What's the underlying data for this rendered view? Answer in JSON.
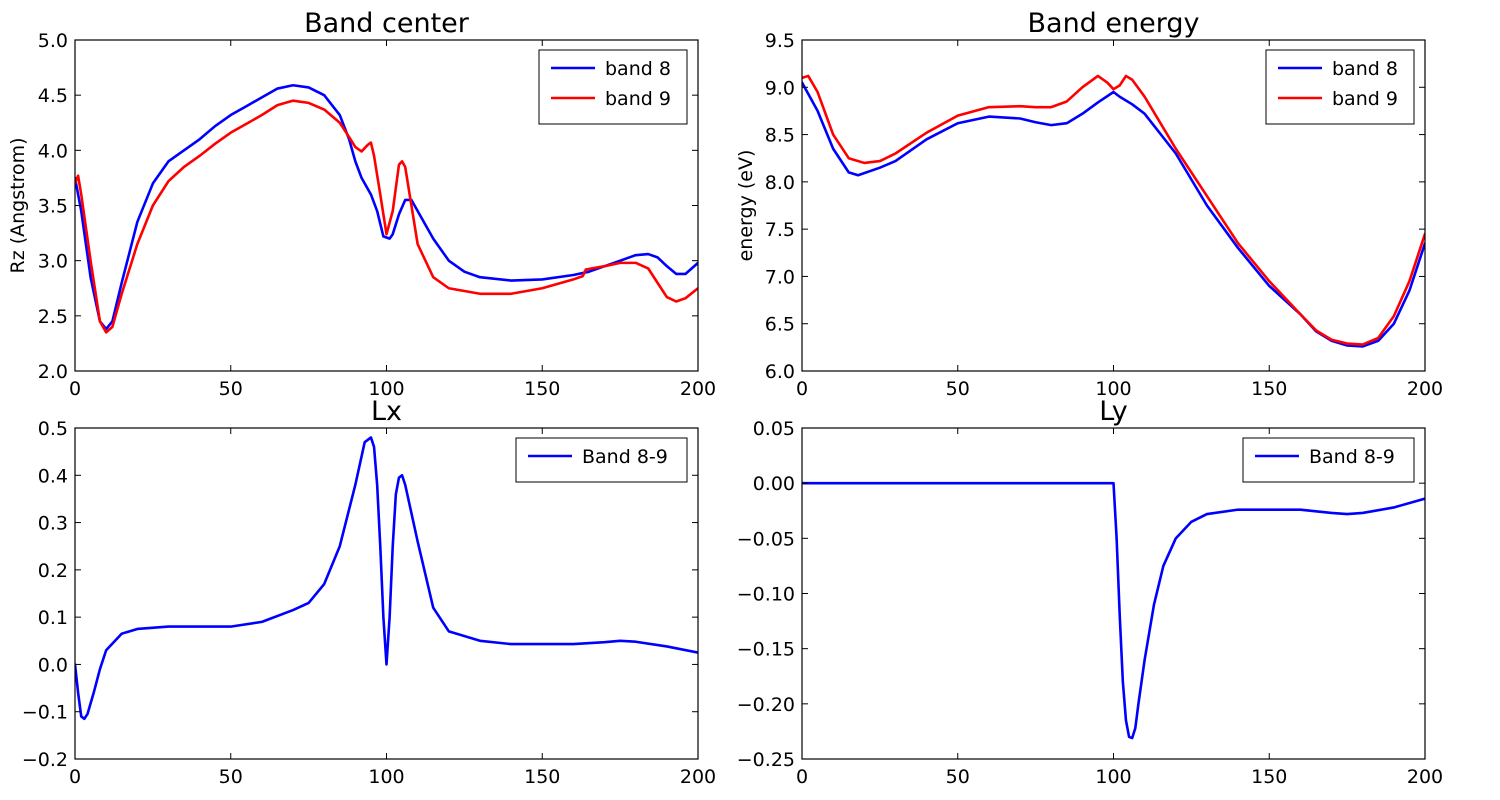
{
  "chart_data": [
    {
      "type": "line",
      "title": "Band center",
      "xlabel": "",
      "ylabel": "Rz (Angstrom)",
      "xlim": [
        0,
        200
      ],
      "ylim": [
        2.0,
        5.0
      ],
      "xticks": [
        0,
        50,
        100,
        150,
        200
      ],
      "xtick_labels": [
        "0",
        "50",
        "100",
        "150",
        "200"
      ],
      "yticks": [
        2.0,
        2.5,
        3.0,
        3.5,
        4.0,
        4.5,
        5.0
      ],
      "ytick_labels": [
        "2.0",
        "2.5",
        "3.0",
        "3.5",
        "4.0",
        "4.5",
        "5.0"
      ],
      "grid": false,
      "legend": "top-right",
      "series": [
        {
          "name": "band 8",
          "color": "#0000ff",
          "points": [
            [
              0,
              3.75
            ],
            [
              2,
              3.45
            ],
            [
              5,
              2.85
            ],
            [
              8,
              2.45
            ],
            [
              10,
              2.38
            ],
            [
              12,
              2.45
            ],
            [
              15,
              2.8
            ],
            [
              20,
              3.35
            ],
            [
              25,
              3.7
            ],
            [
              30,
              3.9
            ],
            [
              35,
              4.0
            ],
            [
              40,
              4.1
            ],
            [
              45,
              4.22
            ],
            [
              50,
              4.32
            ],
            [
              55,
              4.4
            ],
            [
              60,
              4.48
            ],
            [
              65,
              4.56
            ],
            [
              70,
              4.59
            ],
            [
              75,
              4.57
            ],
            [
              80,
              4.5
            ],
            [
              85,
              4.32
            ],
            [
              88,
              4.1
            ],
            [
              90,
              3.9
            ],
            [
              92,
              3.75
            ],
            [
              95,
              3.6
            ],
            [
              97,
              3.45
            ],
            [
              99,
              3.22
            ],
            [
              101,
              3.2
            ],
            [
              102,
              3.24
            ],
            [
              104,
              3.42
            ],
            [
              106,
              3.55
            ],
            [
              108,
              3.55
            ],
            [
              110,
              3.45
            ],
            [
              115,
              3.2
            ],
            [
              120,
              3.0
            ],
            [
              125,
              2.9
            ],
            [
              130,
              2.85
            ],
            [
              140,
              2.82
            ],
            [
              150,
              2.83
            ],
            [
              160,
              2.87
            ],
            [
              165,
              2.9
            ],
            [
              170,
              2.95
            ],
            [
              175,
              3.0
            ],
            [
              180,
              3.05
            ],
            [
              184,
              3.06
            ],
            [
              187,
              3.03
            ],
            [
              190,
              2.95
            ],
            [
              193,
              2.88
            ],
            [
              196,
              2.88
            ],
            [
              200,
              2.98
            ]
          ]
        },
        {
          "name": "band 9",
          "color": "#ff0000",
          "points": [
            [
              0,
              3.7
            ],
            [
              1,
              3.77
            ],
            [
              2,
              3.6
            ],
            [
              5,
              3.0
            ],
            [
              8,
              2.45
            ],
            [
              10,
              2.35
            ],
            [
              12,
              2.4
            ],
            [
              15,
              2.7
            ],
            [
              20,
              3.15
            ],
            [
              25,
              3.5
            ],
            [
              30,
              3.72
            ],
            [
              35,
              3.85
            ],
            [
              40,
              3.95
            ],
            [
              45,
              4.06
            ],
            [
              50,
              4.16
            ],
            [
              55,
              4.24
            ],
            [
              60,
              4.32
            ],
            [
              65,
              4.41
            ],
            [
              70,
              4.45
            ],
            [
              75,
              4.43
            ],
            [
              80,
              4.37
            ],
            [
              85,
              4.25
            ],
            [
              88,
              4.12
            ],
            [
              90,
              4.03
            ],
            [
              92,
              3.99
            ],
            [
              94,
              4.05
            ],
            [
              95,
              4.07
            ],
            [
              96,
              3.95
            ],
            [
              98,
              3.6
            ],
            [
              100,
              3.24
            ],
            [
              102,
              3.45
            ],
            [
              104,
              3.87
            ],
            [
              105,
              3.9
            ],
            [
              106,
              3.85
            ],
            [
              108,
              3.5
            ],
            [
              110,
              3.15
            ],
            [
              115,
              2.85
            ],
            [
              120,
              2.75
            ],
            [
              130,
              2.7
            ],
            [
              140,
              2.7
            ],
            [
              150,
              2.75
            ],
            [
              160,
              2.83
            ],
            [
              163,
              2.86
            ],
            [
              164,
              2.92
            ],
            [
              170,
              2.95
            ],
            [
              175,
              2.98
            ],
            [
              180,
              2.98
            ],
            [
              184,
              2.93
            ],
            [
              187,
              2.8
            ],
            [
              190,
              2.67
            ],
            [
              193,
              2.63
            ],
            [
              196,
              2.66
            ],
            [
              200,
              2.75
            ]
          ]
        }
      ]
    },
    {
      "type": "line",
      "title": "Band energy",
      "xlabel": "",
      "ylabel": "energy (eV)",
      "xlim": [
        0,
        200
      ],
      "ylim": [
        6.0,
        9.5
      ],
      "xticks": [
        0,
        50,
        100,
        150,
        200
      ],
      "xtick_labels": [
        "0",
        "50",
        "100",
        "150",
        "200"
      ],
      "yticks": [
        6.0,
        6.5,
        7.0,
        7.5,
        8.0,
        8.5,
        9.0,
        9.5
      ],
      "ytick_labels": [
        "6.0",
        "6.5",
        "7.0",
        "7.5",
        "8.0",
        "8.5",
        "9.0",
        "9.5"
      ],
      "grid": false,
      "legend": "top-right",
      "series": [
        {
          "name": "band 8",
          "color": "#0000ff",
          "points": [
            [
              0,
              9.05
            ],
            [
              5,
              8.75
            ],
            [
              10,
              8.35
            ],
            [
              15,
              8.1
            ],
            [
              18,
              8.07
            ],
            [
              25,
              8.15
            ],
            [
              30,
              8.22
            ],
            [
              40,
              8.45
            ],
            [
              50,
              8.62
            ],
            [
              60,
              8.69
            ],
            [
              70,
              8.67
            ],
            [
              75,
              8.63
            ],
            [
              80,
              8.6
            ],
            [
              85,
              8.62
            ],
            [
              90,
              8.72
            ],
            [
              95,
              8.84
            ],
            [
              100,
              8.95
            ],
            [
              102,
              8.9
            ],
            [
              106,
              8.82
            ],
            [
              110,
              8.72
            ],
            [
              120,
              8.3
            ],
            [
              130,
              7.75
            ],
            [
              140,
              7.3
            ],
            [
              150,
              6.9
            ],
            [
              160,
              6.6
            ],
            [
              165,
              6.42
            ],
            [
              170,
              6.32
            ],
            [
              175,
              6.27
            ],
            [
              180,
              6.26
            ],
            [
              185,
              6.32
            ],
            [
              190,
              6.5
            ],
            [
              195,
              6.85
            ],
            [
              200,
              7.35
            ]
          ]
        },
        {
          "name": "band 9",
          "color": "#ff0000",
          "points": [
            [
              0,
              9.1
            ],
            [
              2,
              9.12
            ],
            [
              5,
              8.95
            ],
            [
              10,
              8.5
            ],
            [
              15,
              8.25
            ],
            [
              20,
              8.2
            ],
            [
              25,
              8.22
            ],
            [
              30,
              8.3
            ],
            [
              40,
              8.52
            ],
            [
              50,
              8.7
            ],
            [
              60,
              8.79
            ],
            [
              70,
              8.8
            ],
            [
              75,
              8.79
            ],
            [
              80,
              8.79
            ],
            [
              85,
              8.85
            ],
            [
              90,
              9.0
            ],
            [
              95,
              9.12
            ],
            [
              98,
              9.05
            ],
            [
              100,
              8.98
            ],
            [
              102,
              9.02
            ],
            [
              104,
              9.12
            ],
            [
              106,
              9.08
            ],
            [
              110,
              8.9
            ],
            [
              120,
              8.35
            ],
            [
              130,
              7.85
            ],
            [
              140,
              7.35
            ],
            [
              150,
              6.95
            ],
            [
              160,
              6.6
            ],
            [
              165,
              6.43
            ],
            [
              170,
              6.33
            ],
            [
              175,
              6.29
            ],
            [
              180,
              6.28
            ],
            [
              185,
              6.35
            ],
            [
              190,
              6.58
            ],
            [
              195,
              6.95
            ],
            [
              200,
              7.45
            ]
          ]
        }
      ]
    },
    {
      "type": "line",
      "title": "Lx",
      "xlabel": "",
      "ylabel": "",
      "xlim": [
        0,
        200
      ],
      "ylim": [
        -0.2,
        0.5
      ],
      "xticks": [
        0,
        50,
        100,
        150,
        200
      ],
      "xtick_labels": [
        "0",
        "50",
        "100",
        "150",
        "200"
      ],
      "yticks": [
        -0.2,
        -0.1,
        0.0,
        0.1,
        0.2,
        0.3,
        0.4,
        0.5
      ],
      "ytick_labels": [
        "−0.2",
        "−0.1",
        "0.0",
        "0.1",
        "0.2",
        "0.3",
        "0.4",
        "0.5"
      ],
      "grid": false,
      "legend": "top-right",
      "series": [
        {
          "name": "Band 8-9",
          "color": "#0000ff",
          "points": [
            [
              0,
              0.0
            ],
            [
              1,
              -0.06
            ],
            [
              2,
              -0.11
            ],
            [
              3,
              -0.115
            ],
            [
              4,
              -0.105
            ],
            [
              6,
              -0.06
            ],
            [
              8,
              -0.01
            ],
            [
              10,
              0.03
            ],
            [
              15,
              0.065
            ],
            [
              20,
              0.075
            ],
            [
              30,
              0.08
            ],
            [
              40,
              0.08
            ],
            [
              50,
              0.08
            ],
            [
              60,
              0.09
            ],
            [
              70,
              0.115
            ],
            [
              75,
              0.13
            ],
            [
              80,
              0.17
            ],
            [
              85,
              0.25
            ],
            [
              90,
              0.38
            ],
            [
              93,
              0.47
            ],
            [
              95,
              0.48
            ],
            [
              96,
              0.46
            ],
            [
              97,
              0.38
            ],
            [
              98,
              0.25
            ],
            [
              99,
              0.1
            ],
            [
              100,
              0.0
            ],
            [
              101,
              0.1
            ],
            [
              102,
              0.25
            ],
            [
              103,
              0.36
            ],
            [
              104,
              0.395
            ],
            [
              105,
              0.4
            ],
            [
              106,
              0.38
            ],
            [
              110,
              0.26
            ],
            [
              115,
              0.12
            ],
            [
              120,
              0.07
            ],
            [
              130,
              0.05
            ],
            [
              140,
              0.043
            ],
            [
              150,
              0.043
            ],
            [
              160,
              0.043
            ],
            [
              170,
              0.047
            ],
            [
              175,
              0.05
            ],
            [
              180,
              0.048
            ],
            [
              190,
              0.038
            ],
            [
              200,
              0.025
            ]
          ]
        }
      ]
    },
    {
      "type": "line",
      "title": "Ly",
      "xlabel": "",
      "ylabel": "",
      "xlim": [
        0,
        200
      ],
      "ylim": [
        -0.25,
        0.05
      ],
      "xticks": [
        0,
        50,
        100,
        150,
        200
      ],
      "xtick_labels": [
        "0",
        "50",
        "100",
        "150",
        "200"
      ],
      "yticks": [
        -0.25,
        -0.2,
        -0.15,
        -0.1,
        -0.05,
        0.0,
        0.05
      ],
      "ytick_labels": [
        "−0.25",
        "−0.20",
        "−0.15",
        "−0.10",
        "−0.05",
        "0.00",
        "0.05"
      ],
      "grid": false,
      "legend": "top-right",
      "series": [
        {
          "name": "Band 8-9",
          "color": "#0000ff",
          "points": [
            [
              0,
              0.0
            ],
            [
              50,
              0.0
            ],
            [
              100,
              0.0
            ],
            [
              101,
              -0.05
            ],
            [
              102,
              -0.12
            ],
            [
              103,
              -0.18
            ],
            [
              104,
              -0.215
            ],
            [
              105,
              -0.23
            ],
            [
              106,
              -0.231
            ],
            [
              107,
              -0.222
            ],
            [
              108,
              -0.2
            ],
            [
              110,
              -0.16
            ],
            [
              113,
              -0.11
            ],
            [
              116,
              -0.075
            ],
            [
              120,
              -0.05
            ],
            [
              125,
              -0.035
            ],
            [
              130,
              -0.028
            ],
            [
              140,
              -0.024
            ],
            [
              150,
              -0.024
            ],
            [
              160,
              -0.024
            ],
            [
              170,
              -0.027
            ],
            [
              175,
              -0.028
            ],
            [
              180,
              -0.027
            ],
            [
              190,
              -0.022
            ],
            [
              200,
              -0.014
            ]
          ]
        }
      ]
    }
  ]
}
